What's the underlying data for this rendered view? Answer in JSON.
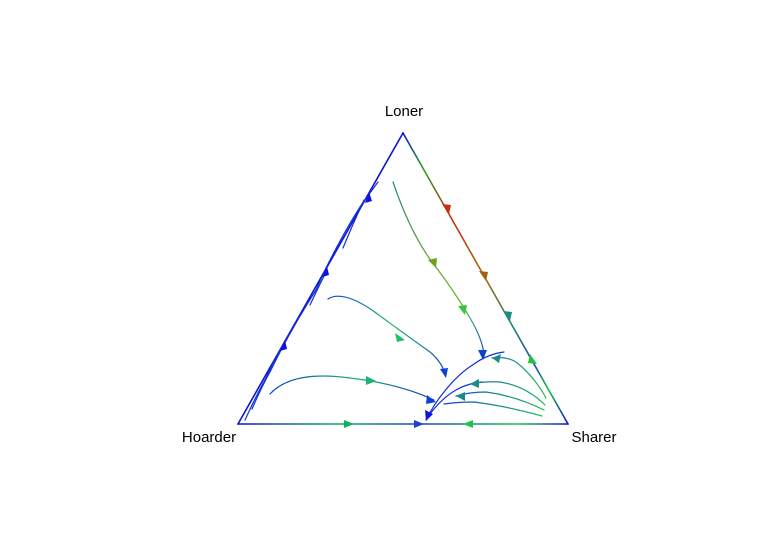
{
  "vertices": {
    "top": "Loner",
    "left": "Hoarder",
    "right": "Sharer"
  },
  "colors": {
    "edge": "#1010d8",
    "slow": "#1030d0",
    "medium": "#10c060",
    "fast": "#d02000"
  }
}
